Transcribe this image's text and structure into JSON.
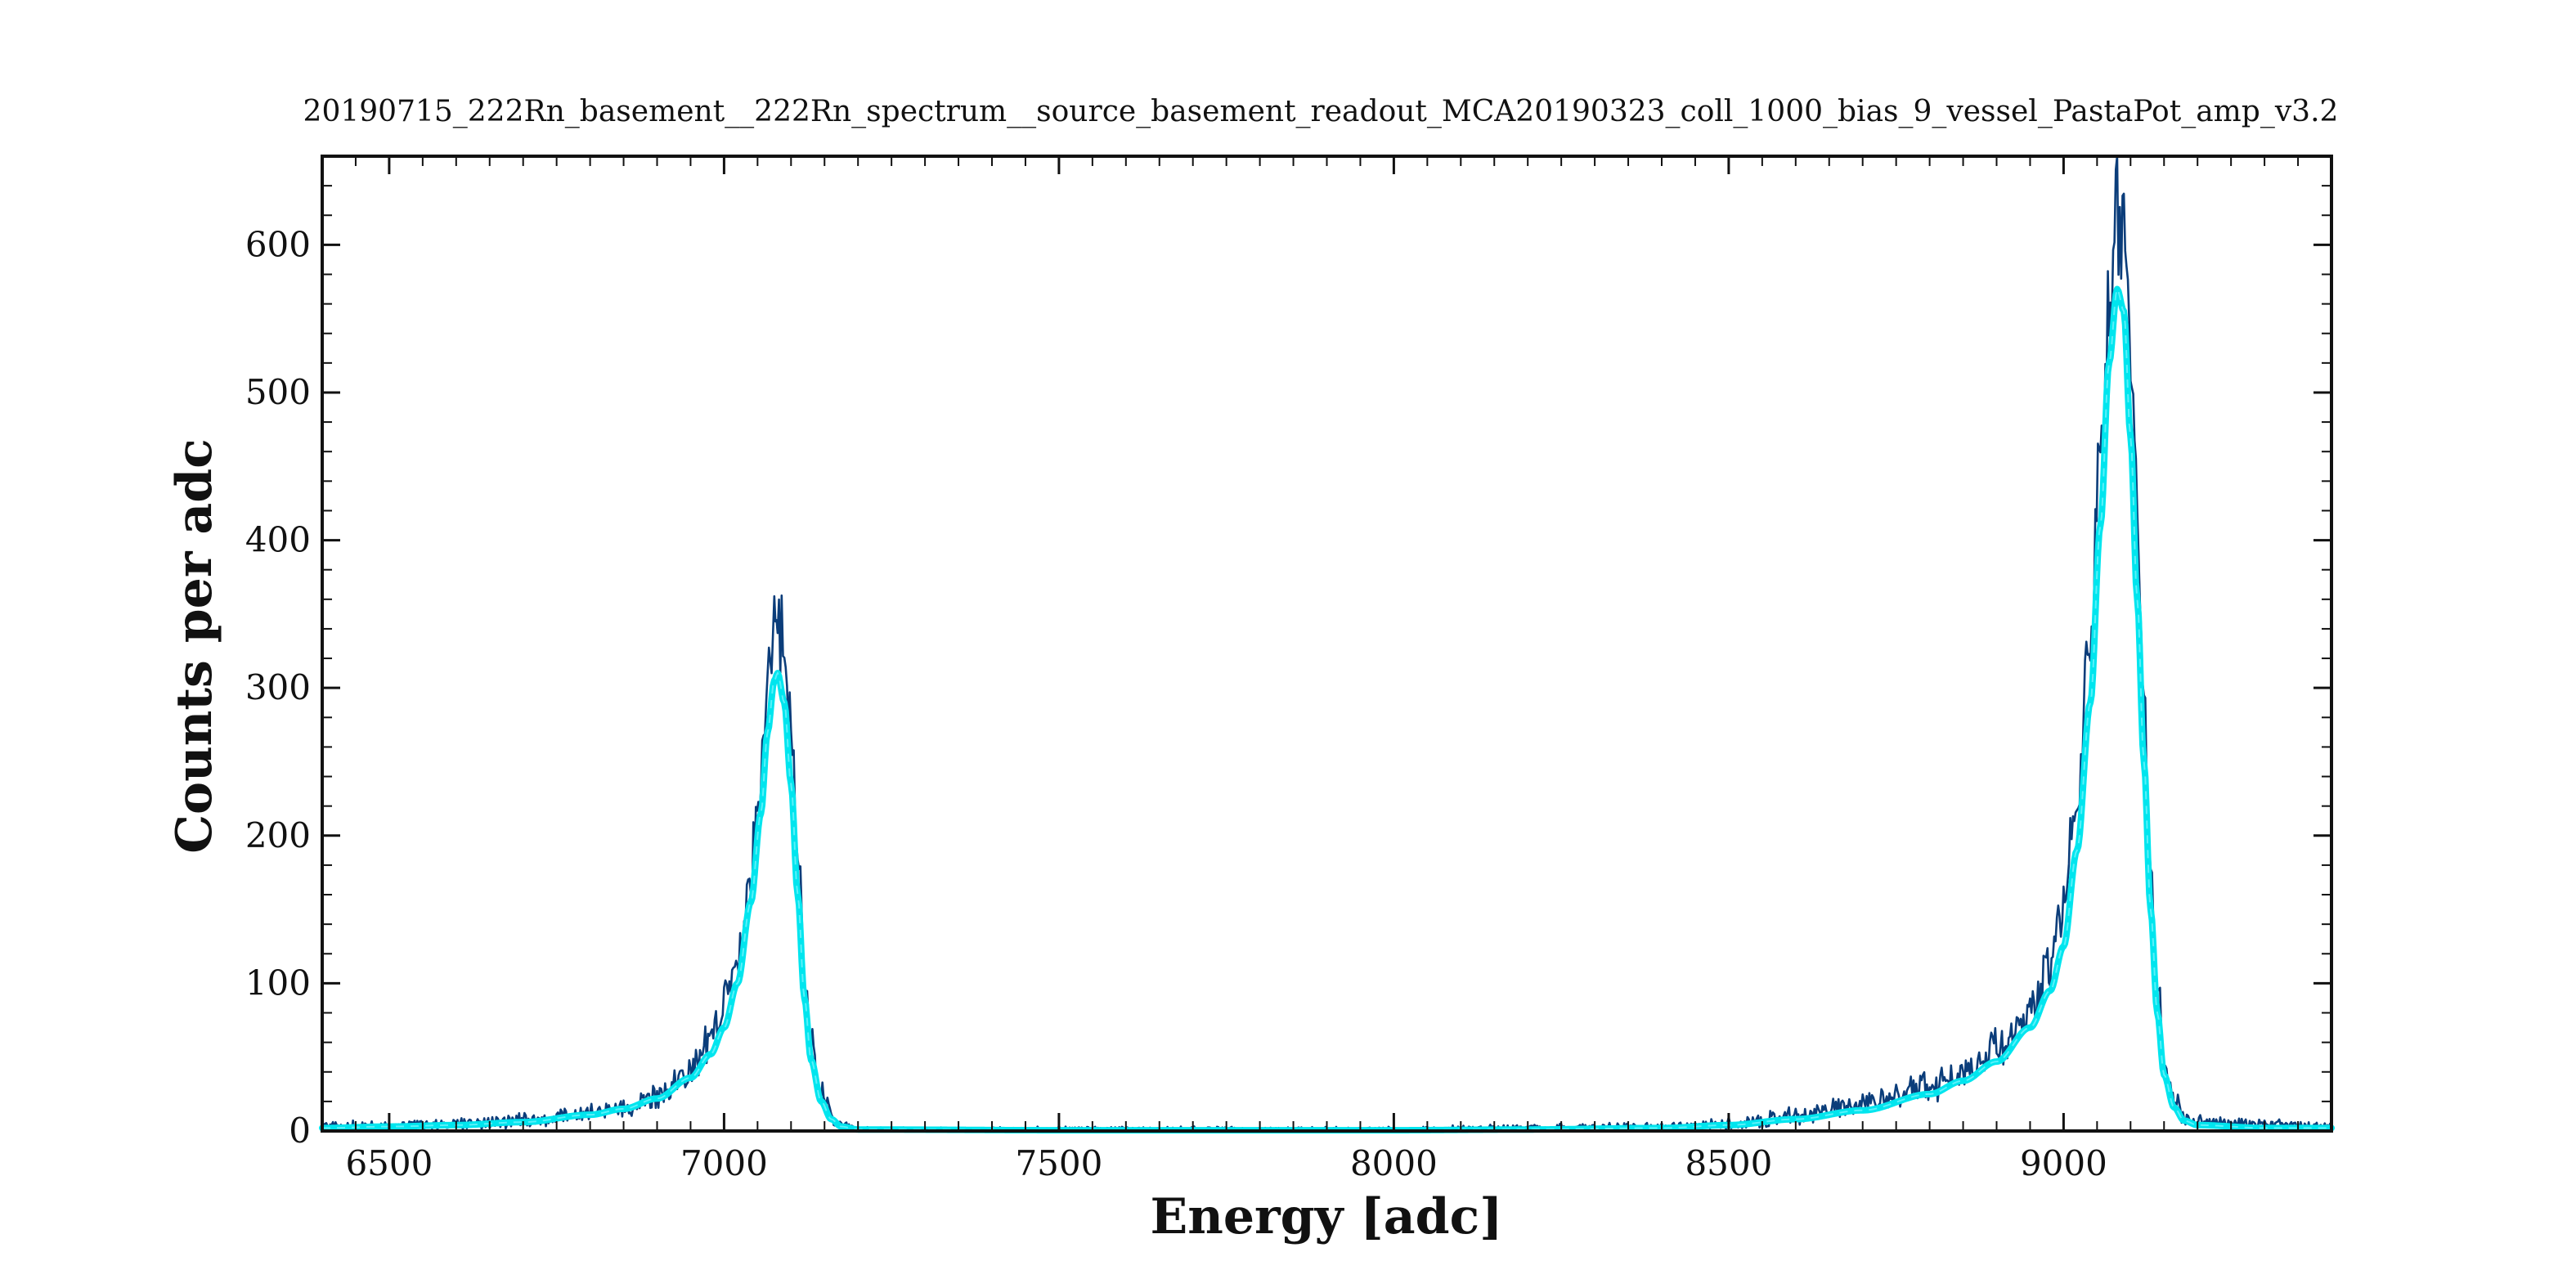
{
  "chart_data": {
    "type": "line",
    "title": "20190715_222Rn_basement__222Rn_spectrum__source_basement_readout_MCA20190323_coll_1000_bias_9_vessel_PastaPot_amp_v3.2",
    "xlabel": "Energy  [adc]",
    "ylabel": "Counts per adc",
    "xlim": [
      6400,
      9400
    ],
    "ylim": [
      0,
      660
    ],
    "x_ticks": [
      6500,
      7000,
      7500,
      8000,
      8500,
      9000
    ],
    "y_ticks": [
      0,
      100,
      200,
      300,
      400,
      500,
      600
    ],
    "grid": false,
    "colors": {
      "data": "#0b3d7a",
      "fit": "#00e5ee",
      "frame": "#111111"
    },
    "series": [
      {
        "kind": "histogram",
        "points": [
          [
            6400,
            3
          ],
          [
            6500,
            4
          ],
          [
            6600,
            5
          ],
          [
            6700,
            7
          ],
          [
            6800,
            12
          ],
          [
            6850,
            16
          ],
          [
            6900,
            25
          ],
          [
            6950,
            40
          ],
          [
            6980,
            60
          ],
          [
            7000,
            85
          ],
          [
            7020,
            120
          ],
          [
            7040,
            180
          ],
          [
            7055,
            240
          ],
          [
            7065,
            300
          ],
          [
            7075,
            340
          ],
          [
            7080,
            345
          ],
          [
            7090,
            330
          ],
          [
            7100,
            270
          ],
          [
            7110,
            190
          ],
          [
            7120,
            110
          ],
          [
            7130,
            60
          ],
          [
            7145,
            25
          ],
          [
            7160,
            10
          ],
          [
            7175,
            4
          ],
          [
            7200,
            1
          ],
          [
            7500,
            1
          ],
          [
            8000,
            1
          ],
          [
            8200,
            2
          ],
          [
            8400,
            3
          ],
          [
            8500,
            5
          ],
          [
            8600,
            10
          ],
          [
            8700,
            18
          ],
          [
            8800,
            30
          ],
          [
            8850,
            40
          ],
          [
            8900,
            55
          ],
          [
            8950,
            80
          ],
          [
            8980,
            110
          ],
          [
            9000,
            150
          ],
          [
            9020,
            230
          ],
          [
            9040,
            340
          ],
          [
            9055,
            460
          ],
          [
            9068,
            560
          ],
          [
            9080,
            625
          ],
          [
            9090,
            600
          ],
          [
            9100,
            520
          ],
          [
            9110,
            420
          ],
          [
            9120,
            300
          ],
          [
            9130,
            180
          ],
          [
            9140,
            100
          ],
          [
            9150,
            45
          ],
          [
            9165,
            20
          ],
          [
            9180,
            10
          ],
          [
            9200,
            6
          ],
          [
            9300,
            4
          ],
          [
            9400,
            3
          ]
        ]
      },
      {
        "kind": "fit",
        "points": [
          [
            6400,
            2
          ],
          [
            6500,
            3
          ],
          [
            6600,
            4
          ],
          [
            6700,
            6
          ],
          [
            6800,
            11
          ],
          [
            6850,
            15
          ],
          [
            6900,
            22
          ],
          [
            6950,
            36
          ],
          [
            6980,
            52
          ],
          [
            7000,
            70
          ],
          [
            7020,
            100
          ],
          [
            7040,
            155
          ],
          [
            7055,
            215
          ],
          [
            7065,
            270
          ],
          [
            7075,
            305
          ],
          [
            7080,
            310
          ],
          [
            7090,
            290
          ],
          [
            7100,
            235
          ],
          [
            7110,
            160
          ],
          [
            7120,
            90
          ],
          [
            7130,
            48
          ],
          [
            7145,
            20
          ],
          [
            7160,
            8
          ],
          [
            7175,
            3
          ],
          [
            7200,
            1
          ],
          [
            7500,
            0.5
          ],
          [
            8000,
            0.5
          ],
          [
            8200,
            1
          ],
          [
            8400,
            2
          ],
          [
            8500,
            4
          ],
          [
            8600,
            8
          ],
          [
            8700,
            14
          ],
          [
            8800,
            25
          ],
          [
            8850,
            34
          ],
          [
            8900,
            47
          ],
          [
            8950,
            70
          ],
          [
            8980,
            95
          ],
          [
            9000,
            125
          ],
          [
            9020,
            190
          ],
          [
            9040,
            290
          ],
          [
            9055,
            410
          ],
          [
            9068,
            520
          ],
          [
            9080,
            570
          ],
          [
            9090,
            555
          ],
          [
            9100,
            470
          ],
          [
            9110,
            360
          ],
          [
            9120,
            250
          ],
          [
            9130,
            150
          ],
          [
            9140,
            80
          ],
          [
            9150,
            38
          ],
          [
            9165,
            16
          ],
          [
            9180,
            7
          ],
          [
            9200,
            4
          ],
          [
            9300,
            2
          ],
          [
            9400,
            2
          ]
        ]
      }
    ]
  }
}
